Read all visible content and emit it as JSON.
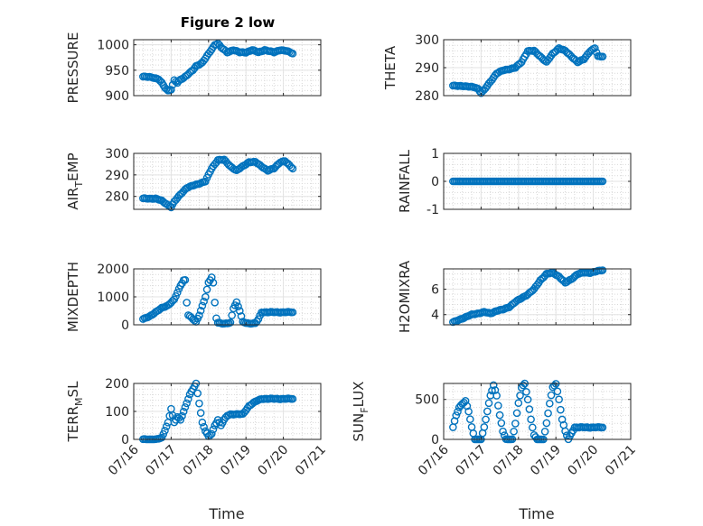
{
  "figure": {
    "title": "Figure 2 low"
  },
  "style": {
    "marker_color": "#0072BD",
    "axis_color": "#262626",
    "grid_color": "#d9d9d9",
    "background": "#ffffff"
  },
  "x_axis": {
    "label": "Time",
    "range": [
      "2023-07-16",
      "2023-07-21"
    ],
    "ticks": [
      {
        "date": "2023-07-16",
        "label": "07/16"
      },
      {
        "date": "2023-07-17",
        "label": "07/17"
      },
      {
        "date": "2023-07-18",
        "label": "07/18"
      },
      {
        "date": "2023-07-19",
        "label": "07/19"
      },
      {
        "date": "2023-07-20",
        "label": "07/20"
      },
      {
        "date": "2023-07-21",
        "label": "07/21"
      }
    ],
    "samples": {
      "first": "2023-07-16 06:00",
      "last": "2023-07-20 06:00",
      "count": 97,
      "interval": "1 hour"
    }
  },
  "chart_data": [
    {
      "id": "pressure",
      "type": "scatter",
      "ylabel": "PRESSURE",
      "ylim": [
        900,
        1010
      ],
      "yticks": [
        900,
        950,
        1000
      ],
      "ytick_labels": [
        "900",
        "950",
        "1000"
      ],
      "keyframes": [
        [
          0,
          937
        ],
        [
          4,
          937
        ],
        [
          6,
          936
        ],
        [
          8,
          934
        ],
        [
          10,
          932
        ],
        [
          12,
          925
        ],
        [
          14,
          916
        ],
        [
          16,
          910
        ],
        [
          18,
          912
        ],
        [
          20,
          930
        ],
        [
          22,
          925
        ],
        [
          24,
          932
        ],
        [
          26,
          935
        ],
        [
          28,
          940
        ],
        [
          32,
          950
        ],
        [
          34,
          958
        ],
        [
          38,
          965
        ],
        [
          42,
          982
        ],
        [
          46,
          1000
        ],
        [
          48,
          1003
        ],
        [
          50,
          995
        ],
        [
          54,
          985
        ],
        [
          58,
          990
        ],
        [
          62,
          985
        ],
        [
          66,
          985
        ],
        [
          70,
          990
        ],
        [
          74,
          985
        ],
        [
          78,
          990
        ],
        [
          84,
          985
        ],
        [
          88,
          990
        ],
        [
          92,
          988
        ],
        [
          96,
          983
        ]
      ]
    },
    {
      "id": "theta",
      "type": "scatter",
      "ylabel": "THETA",
      "ylim": [
        280,
        300
      ],
      "yticks": [
        280,
        290,
        300
      ],
      "ytick_labels": [
        "280",
        "290",
        "300"
      ],
      "keyframes": [
        [
          0,
          283.5
        ],
        [
          6,
          283.5
        ],
        [
          10,
          283.2
        ],
        [
          14,
          283
        ],
        [
          16,
          282.5
        ],
        [
          18,
          281
        ],
        [
          20,
          282
        ],
        [
          24,
          285
        ],
        [
          28,
          288
        ],
        [
          32,
          289
        ],
        [
          36,
          289.5
        ],
        [
          40,
          290
        ],
        [
          44,
          292
        ],
        [
          48,
          296
        ],
        [
          52,
          296
        ],
        [
          56,
          294
        ],
        [
          60,
          292
        ],
        [
          64,
          295
        ],
        [
          68,
          297
        ],
        [
          72,
          296
        ],
        [
          76,
          294
        ],
        [
          80,
          292
        ],
        [
          84,
          293
        ],
        [
          88,
          296
        ],
        [
          91,
          297
        ],
        [
          93,
          294
        ],
        [
          96,
          294
        ]
      ]
    },
    {
      "id": "air_temp",
      "type": "scatter",
      "ylabel": "AIR_TEMP",
      "ylim": [
        274,
        300
      ],
      "yticks": [
        280,
        290,
        300
      ],
      "ytick_labels": [
        "280",
        "290",
        "300"
      ],
      "keyframes": [
        [
          0,
          279
        ],
        [
          8,
          279
        ],
        [
          12,
          278
        ],
        [
          16,
          276
        ],
        [
          18,
          275
        ],
        [
          20,
          277.5
        ],
        [
          24,
          281
        ],
        [
          28,
          284
        ],
        [
          32,
          285
        ],
        [
          36,
          286
        ],
        [
          40,
          287
        ],
        [
          44,
          293
        ],
        [
          48,
          297
        ],
        [
          52,
          297
        ],
        [
          56,
          294
        ],
        [
          60,
          292
        ],
        [
          64,
          294
        ],
        [
          68,
          296
        ],
        [
          72,
          296
        ],
        [
          76,
          294
        ],
        [
          80,
          292
        ],
        [
          84,
          293
        ],
        [
          88,
          296
        ],
        [
          91,
          296.5
        ],
        [
          93,
          295
        ],
        [
          96,
          293
        ]
      ]
    },
    {
      "id": "rainfall",
      "type": "scatter",
      "ylabel": "RAINFALL",
      "ylim": [
        -1,
        1
      ],
      "yticks": [
        -1,
        0,
        1
      ],
      "ytick_labels": [
        "-1",
        "0",
        "1"
      ],
      "keyframes": [
        [
          0,
          0
        ],
        [
          96,
          0
        ]
      ]
    },
    {
      "id": "mixdepth",
      "type": "scatter",
      "ylabel": "MIXDEPTH",
      "ylim": [
        0,
        2000
      ],
      "yticks": [
        0,
        1000,
        2000
      ],
      "ytick_labels": [
        "0",
        "1000",
        "2000"
      ],
      "keyframes": [
        [
          0,
          200
        ],
        [
          4,
          300
        ],
        [
          8,
          450
        ],
        [
          12,
          600
        ],
        [
          16,
          700
        ],
        [
          20,
          900
        ],
        [
          24,
          1400
        ],
        [
          26,
          1600
        ],
        [
          27,
          1600
        ],
        [
          28,
          800
        ],
        [
          29,
          350
        ],
        [
          32,
          200
        ],
        [
          34,
          100
        ],
        [
          36,
          350
        ],
        [
          40,
          1000
        ],
        [
          42,
          1500
        ],
        [
          44,
          1700
        ],
        [
          45,
          1500
        ],
        [
          46,
          800
        ],
        [
          47,
          250
        ],
        [
          48,
          80
        ],
        [
          52,
          30
        ],
        [
          56,
          80
        ],
        [
          58,
          600
        ],
        [
          60,
          800
        ],
        [
          62,
          500
        ],
        [
          64,
          100
        ],
        [
          68,
          50
        ],
        [
          72,
          50
        ],
        [
          74,
          200
        ],
        [
          76,
          450
        ]
      ]
    },
    {
      "id": "h2omixra",
      "type": "scatter",
      "ylabel": "H2OMIXRA",
      "ylim": [
        3.2,
        7.6
      ],
      "yticks": [
        4,
        6
      ],
      "ytick_labels": [
        "4",
        "6"
      ],
      "keyframes": [
        [
          0,
          3.4
        ],
        [
          4,
          3.6
        ],
        [
          8,
          3.8
        ],
        [
          12,
          4.0
        ],
        [
          16,
          4.1
        ],
        [
          20,
          4.2
        ],
        [
          24,
          4.1
        ],
        [
          28,
          4.3
        ],
        [
          32,
          4.4
        ],
        [
          36,
          4.6
        ],
        [
          40,
          5.0
        ],
        [
          44,
          5.3
        ],
        [
          48,
          5.6
        ],
        [
          52,
          6.0
        ],
        [
          56,
          6.7
        ],
        [
          60,
          7.2
        ],
        [
          64,
          7.3
        ],
        [
          68,
          7.0
        ],
        [
          72,
          6.5
        ],
        [
          76,
          6.8
        ],
        [
          80,
          7.2
        ],
        [
          84,
          7.3
        ],
        [
          88,
          7.3
        ],
        [
          92,
          7.4
        ],
        [
          96,
          7.5
        ]
      ]
    },
    {
      "id": "terr_msl",
      "type": "scatter",
      "ylabel": "TERR_MSL",
      "ylim": [
        0,
        200
      ],
      "yticks": [
        0,
        100,
        200
      ],
      "ytick_labels": [
        "0",
        "100",
        "200"
      ],
      "keyframes": [
        [
          0,
          0
        ],
        [
          8,
          0
        ],
        [
          12,
          5
        ],
        [
          16,
          60
        ],
        [
          18,
          110
        ],
        [
          20,
          60
        ],
        [
          22,
          80
        ],
        [
          24,
          70
        ],
        [
          26,
          100
        ],
        [
          28,
          130
        ],
        [
          30,
          160
        ],
        [
          32,
          180
        ],
        [
          34,
          200
        ],
        [
          36,
          130
        ],
        [
          38,
          60
        ],
        [
          40,
          30
        ],
        [
          42,
          10
        ],
        [
          44,
          20
        ],
        [
          46,
          50
        ],
        [
          48,
          70
        ],
        [
          50,
          50
        ],
        [
          52,
          70
        ],
        [
          54,
          85
        ],
        [
          56,
          90
        ],
        [
          64,
          90
        ],
        [
          68,
          120
        ],
        [
          72,
          135
        ],
        [
          76,
          145
        ]
      ]
    },
    {
      "id": "sun_flux",
      "type": "scatter",
      "ylabel": "SUN_FLUX",
      "ylim": [
        0,
        700
      ],
      "yticks": [
        0,
        500
      ],
      "ytick_labels": [
        "0",
        "500"
      ],
      "keyframes": [
        [
          0,
          150
        ],
        [
          2,
          300
        ],
        [
          4,
          400
        ],
        [
          6,
          450
        ],
        [
          8,
          480
        ],
        [
          10,
          350
        ],
        [
          12,
          150
        ],
        [
          14,
          0
        ],
        [
          18,
          0
        ],
        [
          20,
          150
        ],
        [
          22,
          350
        ],
        [
          24,
          550
        ],
        [
          26,
          680
        ],
        [
          28,
          550
        ],
        [
          30,
          300
        ],
        [
          32,
          100
        ],
        [
          34,
          0
        ],
        [
          38,
          0
        ],
        [
          40,
          200
        ],
        [
          42,
          450
        ],
        [
          44,
          650
        ],
        [
          46,
          700
        ],
        [
          48,
          500
        ],
        [
          50,
          250
        ],
        [
          52,
          50
        ],
        [
          54,
          0
        ],
        [
          58,
          0
        ],
        [
          60,
          200
        ],
        [
          62,
          450
        ],
        [
          64,
          650
        ],
        [
          66,
          700
        ],
        [
          68,
          500
        ],
        [
          70,
          250
        ],
        [
          72,
          100
        ],
        [
          74,
          0
        ],
        [
          76,
          80
        ],
        [
          78,
          150
        ]
      ]
    }
  ]
}
